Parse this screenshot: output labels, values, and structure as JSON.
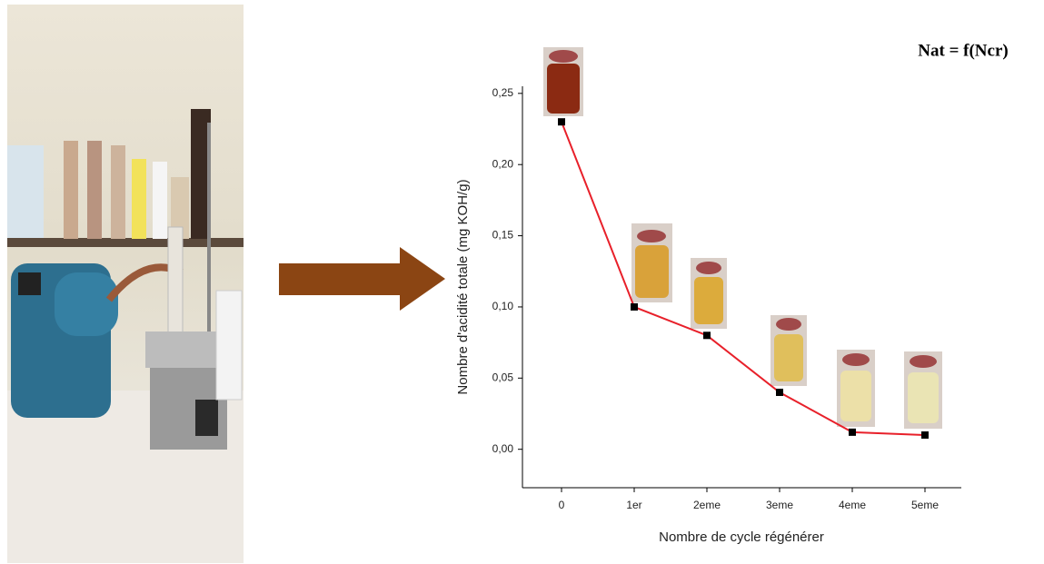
{
  "chart_data": {
    "type": "line",
    "title": "Nat = f(Ncr)",
    "x_label": "Nombre de cycle régénérer",
    "y_label": "Nombre d'acidité totale (mg KOH/g)",
    "categories": [
      "0",
      "1er",
      "2eme",
      "3eme",
      "4eme",
      "5eme"
    ],
    "values": [
      0.23,
      0.1,
      0.08,
      0.04,
      0.012,
      0.01
    ],
    "color": "#e8202a",
    "marker_color": "#000000",
    "ylim": [
      -0.027,
      0.255
    ],
    "yticks": [
      {
        "value": 0,
        "label": "0,00"
      },
      {
        "value": 0.05,
        "label": "0,05"
      },
      {
        "value": 0.1,
        "label": "0,10"
      },
      {
        "value": 0.15,
        "label": "0,15"
      },
      {
        "value": 0.2,
        "label": "0,20"
      },
      {
        "value": 0.25,
        "label": "0,25"
      }
    ],
    "grid": false
  }
}
